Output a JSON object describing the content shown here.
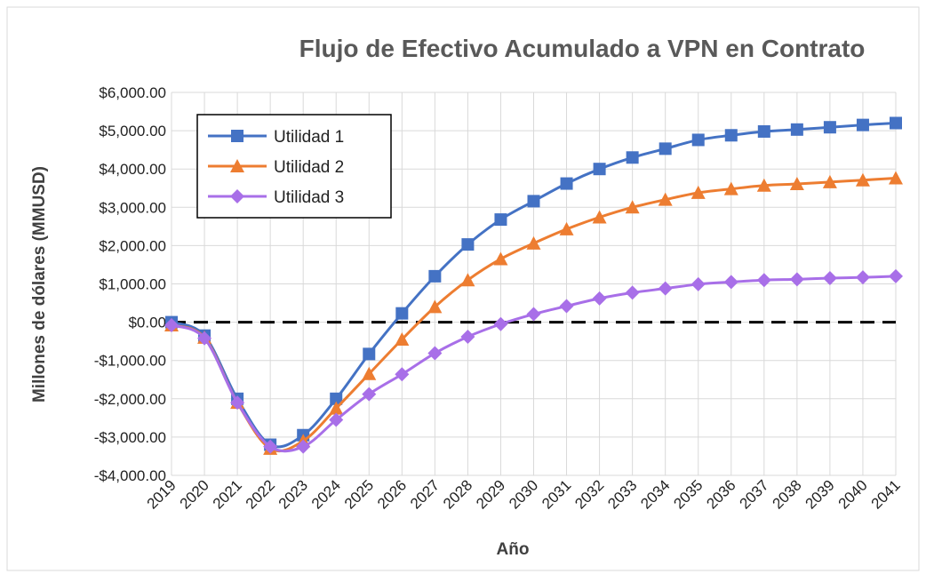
{
  "chart_data": {
    "type": "line",
    "title": "Flujo de Efectivo Acumulado a VPN en Contrato",
    "x_label": "Año",
    "y_label": "Millones de dólares (MMUSD)",
    "categories": [
      "2019",
      "2020",
      "2021",
      "2022",
      "2023",
      "2024",
      "2025",
      "2026",
      "2027",
      "2028",
      "2029",
      "2030",
      "2031",
      "2032",
      "2033",
      "2034",
      "2035",
      "2036",
      "2037",
      "2038",
      "2039",
      "2040",
      "2041"
    ],
    "series": [
      {
        "name": "Utilidad 1",
        "color": "#4472c4",
        "marker": "square",
        "values": [
          0,
          -350,
          -2000,
          -3200,
          -2950,
          -2000,
          -830,
          230,
          1200,
          2030,
          2680,
          3160,
          3620,
          4000,
          4300,
          4530,
          4760,
          4880,
          4980,
          5030,
          5090,
          5150,
          5200
        ]
      },
      {
        "name": "Utilidad 2",
        "color": "#ed7d31",
        "marker": "triangle",
        "values": [
          -80,
          -400,
          -2100,
          -3300,
          -3100,
          -2250,
          -1350,
          -450,
          400,
          1100,
          1650,
          2060,
          2430,
          2740,
          3000,
          3200,
          3380,
          3480,
          3570,
          3610,
          3660,
          3710,
          3760
        ]
      },
      {
        "name": "Utilidad 3",
        "color": "#a86fe8",
        "marker": "diamond",
        "values": [
          -80,
          -420,
          -2100,
          -3250,
          -3250,
          -2550,
          -1880,
          -1360,
          -810,
          -380,
          -50,
          210,
          420,
          620,
          770,
          880,
          990,
          1050,
          1100,
          1120,
          1150,
          1170,
          1200
        ]
      }
    ],
    "ylim": [
      -4000,
      6000
    ],
    "yticks": [
      {
        "value": -4000,
        "label": "-$4,000.00"
      },
      {
        "value": -3000,
        "label": "-$3,000.00"
      },
      {
        "value": -2000,
        "label": "-$2,000.00"
      },
      {
        "value": -1000,
        "label": "-$1,000.00"
      },
      {
        "value": 0,
        "label": "$0.00"
      },
      {
        "value": 1000,
        "label": "$1,000.00"
      },
      {
        "value": 2000,
        "label": "$2,000.00"
      },
      {
        "value": 3000,
        "label": "$3,000.00"
      },
      {
        "value": 4000,
        "label": "$4,000.00"
      },
      {
        "value": 5000,
        "label": "$5,000.00"
      },
      {
        "value": 6000,
        "label": "$6,000.00"
      }
    ],
    "reference_line": 0,
    "grid": true,
    "legend": "upper left"
  }
}
